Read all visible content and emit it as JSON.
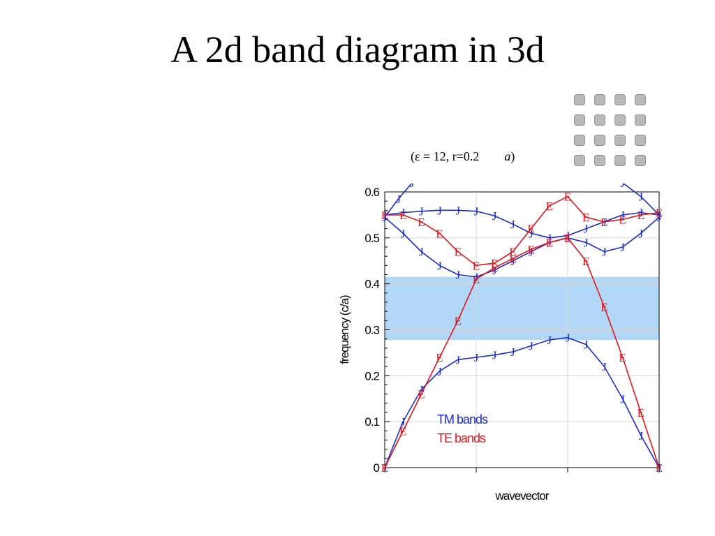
{
  "slide": {
    "title": "A 2d band diagram in 3d",
    "params_prefix": "(ε = 12, r=0.2",
    "params_unit": "a",
    "params_suffix": ")"
  },
  "tiny_labels": [
    "​",
    "​",
    "​",
    "​",
    "​",
    "​"
  ],
  "lattice": {
    "rows": 4,
    "cols": 4,
    "color": "#b9b9b9"
  },
  "chart_data": {
    "type": "line",
    "xlabel": "wavevector",
    "ylabel": "frequency (c/a)",
    "ylim": [
      0,
      0.6
    ],
    "yticks": [
      "0",
      "0.1",
      "0.2",
      "0.3",
      "0.4",
      "0.5",
      "0.6"
    ],
    "ytick_values": [
      0,
      0.1,
      0.2,
      0.3,
      0.4,
      0.5,
      0.6
    ],
    "xlim": [
      0,
      3
    ],
    "x_divisions": [
      0,
      1,
      2,
      3
    ],
    "grid": true,
    "band_gap": {
      "from": 0.278,
      "to": 0.415,
      "color": "#b3d8f7"
    },
    "legend_position": "bottom-center",
    "series": [
      {
        "name": "TM bands",
        "marker": "J",
        "color": "#1a2bc8",
        "bands": [
          [
            [
              0,
              0
            ],
            [
              0.2,
              0.1
            ],
            [
              0.4,
              0.17
            ],
            [
              0.6,
              0.21
            ],
            [
              0.8,
              0.235
            ],
            [
              1.0,
              0.24
            ],
            [
              1.2,
              0.245
            ],
            [
              1.4,
              0.252
            ],
            [
              1.6,
              0.265
            ],
            [
              1.8,
              0.278
            ],
            [
              2.0,
              0.283
            ],
            [
              2.2,
              0.268
            ],
            [
              2.4,
              0.22
            ],
            [
              2.6,
              0.15
            ],
            [
              2.8,
              0.07
            ],
            [
              3.0,
              0
            ]
          ],
          [
            [
              0,
              0.545
            ],
            [
              0.2,
              0.51
            ],
            [
              0.4,
              0.47
            ],
            [
              0.6,
              0.44
            ],
            [
              0.8,
              0.42
            ],
            [
              1.0,
              0.415
            ],
            [
              1.2,
              0.43
            ],
            [
              1.4,
              0.45
            ],
            [
              1.6,
              0.47
            ],
            [
              1.8,
              0.49
            ],
            [
              2.0,
              0.5
            ],
            [
              2.2,
              0.49
            ],
            [
              2.4,
              0.47
            ],
            [
              2.6,
              0.48
            ],
            [
              2.8,
              0.51
            ],
            [
              3.0,
              0.545
            ]
          ],
          [
            [
              0,
              0.55
            ],
            [
              0.2,
              0.555
            ],
            [
              0.4,
              0.558
            ],
            [
              0.6,
              0.56
            ],
            [
              0.8,
              0.56
            ],
            [
              1.0,
              0.558
            ],
            [
              1.2,
              0.548
            ],
            [
              1.4,
              0.53
            ],
            [
              1.6,
              0.51
            ],
            [
              1.8,
              0.5
            ],
            [
              2.0,
              0.505
            ],
            [
              2.2,
              0.52
            ],
            [
              2.4,
              0.535
            ],
            [
              2.6,
              0.55
            ],
            [
              2.8,
              0.555
            ],
            [
              3.0,
              0.55
            ]
          ],
          [
            [
              0,
              0.545
            ],
            [
              0.15,
              0.585
            ],
            [
              0.3,
              0.62
            ]
          ],
          [
            [
              2.6,
              0.62
            ],
            [
              2.8,
              0.59
            ],
            [
              3.0,
              0.55
            ]
          ]
        ]
      },
      {
        "name": "TE bands",
        "marker": "E",
        "color": "#e0161c",
        "bands": [
          [
            [
              0,
              0
            ],
            [
              0.2,
              0.08
            ],
            [
              0.4,
              0.16
            ],
            [
              0.6,
              0.24
            ],
            [
              0.8,
              0.32
            ],
            [
              1.0,
              0.41
            ],
            [
              1.2,
              0.435
            ],
            [
              1.4,
              0.455
            ],
            [
              1.6,
              0.475
            ],
            [
              1.8,
              0.49
            ],
            [
              2.0,
              0.5
            ],
            [
              2.2,
              0.45
            ],
            [
              2.4,
              0.35
            ],
            [
              2.6,
              0.24
            ],
            [
              2.8,
              0.12
            ],
            [
              3.0,
              0
            ]
          ],
          [
            [
              0,
              0.55
            ],
            [
              0.2,
              0.55
            ],
            [
              0.4,
              0.535
            ],
            [
              0.6,
              0.51
            ],
            [
              0.8,
              0.47
            ],
            [
              1.0,
              0.44
            ],
            [
              1.2,
              0.445
            ],
            [
              1.4,
              0.47
            ],
            [
              1.6,
              0.52
            ],
            [
              1.8,
              0.57
            ],
            [
              2.0,
              0.59
            ],
            [
              2.2,
              0.545
            ],
            [
              2.4,
              0.535
            ],
            [
              2.6,
              0.54
            ],
            [
              2.8,
              0.55
            ],
            [
              3.0,
              0.555
            ]
          ]
        ]
      }
    ]
  }
}
